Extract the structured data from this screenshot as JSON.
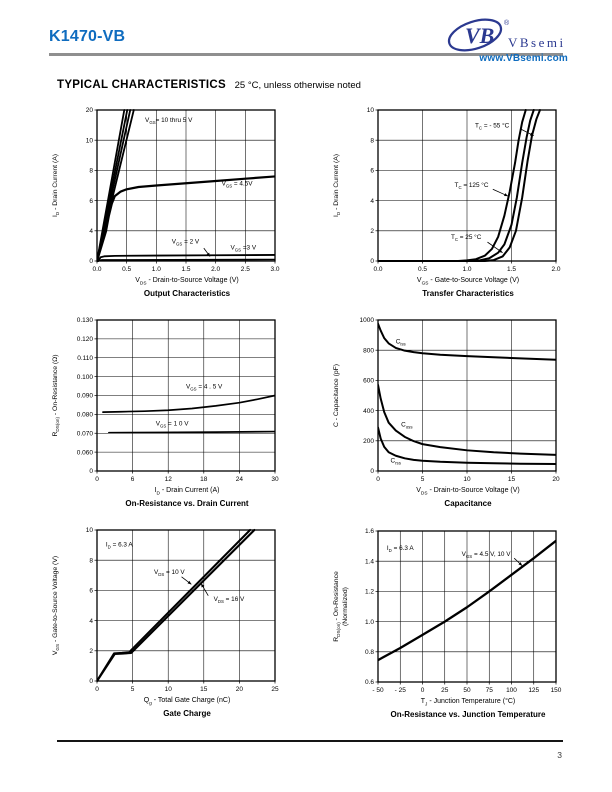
{
  "page": {
    "number": "3"
  },
  "header": {
    "part_number": "K1470-VB",
    "logo_script": "VB",
    "logo_reg": "®",
    "logo_text": "VBsemi",
    "logo_url": "www.VBsemi.com",
    "part_number_color": "#0f6cbf",
    "logo_color": "#2b3990"
  },
  "section": {
    "title": "TYPICAL CHARACTERISTICS",
    "subtitle": "25 °C, unless otherwise noted"
  },
  "chart_data": [
    {
      "type": "line",
      "title": "Output Characteristics",
      "xlabel": "V_{DS} - Drain-to-Source Voltage (V)",
      "ylabel": [
        "I_{D} - Drain Current (A)"
      ],
      "x_range": [
        0,
        3
      ],
      "x_ticks": [
        {
          "label": "0.0",
          "v": 0
        },
        {
          "label": "0.5",
          "v": 0.5
        },
        {
          "label": "1.0",
          "v": 1
        },
        {
          "label": "1.5",
          "v": 1.5
        },
        {
          "label": "2.0",
          "v": 2
        },
        {
          "label": "2.5",
          "v": 2.5
        },
        {
          "label": "3.0",
          "v": 3
        }
      ],
      "y_ticks": [
        {
          "label": "0",
          "f": 0
        },
        {
          "label": "4",
          "f": 0.2
        },
        {
          "label": "6",
          "f": 0.4
        },
        {
          "label": "8",
          "f": 0.6
        },
        {
          "label": "10",
          "f": 0.8
        },
        {
          "label": "20",
          "f": 1
        }
      ],
      "y_map": [
        [
          0,
          0
        ],
        [
          4,
          0.2
        ],
        [
          6,
          0.4
        ],
        [
          8,
          0.6
        ],
        [
          10,
          0.8
        ],
        [
          20,
          1
        ]
      ],
      "series": [
        {
          "name": "VGS 10 thru 5 V (a)",
          "w": 1.8,
          "x": [
            0,
            0.092,
            0.184,
            0.276,
            0.368,
            0.46
          ],
          "y": [
            0,
            4,
            6,
            8,
            10,
            20
          ]
        },
        {
          "name": "VGS 10 thru 5 V (b)",
          "w": 1.8,
          "x": [
            0,
            0.102,
            0.204,
            0.306,
            0.408,
            0.51
          ],
          "y": [
            0,
            4,
            6,
            8,
            10,
            20
          ]
        },
        {
          "name": "VGS 10 thru 5 V (c)",
          "w": 1.8,
          "x": [
            0,
            0.112,
            0.224,
            0.336,
            0.448,
            0.56
          ],
          "y": [
            0,
            4,
            6,
            8,
            10,
            20
          ]
        },
        {
          "name": "VGS 10 thru 5 V (d)",
          "w": 1.8,
          "x": [
            0,
            0.124,
            0.248,
            0.372,
            0.496,
            0.62
          ],
          "y": [
            0,
            4,
            6,
            8,
            10,
            20
          ]
        },
        {
          "name": "VGS = 4.5 V",
          "w": 2.2,
          "x": [
            0,
            0.05,
            0.1,
            0.15,
            0.2,
            0.25,
            0.3,
            0.4,
            0.5,
            0.7,
            1,
            1.5,
            2,
            2.5,
            3
          ],
          "y": [
            0,
            1.3,
            2.6,
            3.9,
            5,
            5.8,
            6.3,
            6.6,
            6.75,
            6.9,
            7,
            7.15,
            7.3,
            7.45,
            7.6
          ]
        },
        {
          "name": "VGS = 3 V",
          "w": 1.8,
          "x": [
            0.02,
            0.06,
            0.12,
            0.3,
            1,
            2,
            3
          ],
          "y": [
            0,
            0.5,
            0.62,
            0.68,
            0.72,
            0.76,
            0.8
          ]
        },
        {
          "name": "VGS = 2 V",
          "w": 1.6,
          "x": [
            0.02,
            0.08,
            3
          ],
          "y": [
            0,
            0.14,
            0.2
          ]
        }
      ],
      "annotations": [
        {
          "text": "V_{GS}= 10 thru 5 V",
          "fx": 0.27,
          "fy": 0.92
        },
        {
          "text": "V_{GS} = 4.5V",
          "fx": 0.7,
          "fy": 0.5
        },
        {
          "text": "V_{GS} = 2 V",
          "fx": 0.42,
          "fy": 0.115,
          "arrow": [
            0.6,
            0.085,
            0.635,
            0.03
          ]
        },
        {
          "text": "V_{GS} =3 V",
          "fx": 0.75,
          "fy": 0.075
        }
      ]
    },
    {
      "type": "line",
      "title": "Transfer Characteristics",
      "xlabel": "V_{GS} - Gate-to-Source Voltage (V)",
      "ylabel": [
        "I_{D} - Drain Current (A)"
      ],
      "x_range": [
        0,
        2
      ],
      "x_ticks": [
        {
          "label": "0.0",
          "v": 0
        },
        {
          "label": "0.5",
          "v": 0.5
        },
        {
          "label": "1.0",
          "v": 1
        },
        {
          "label": "1.5",
          "v": 1.5
        },
        {
          "label": "2.0",
          "v": 2
        }
      ],
      "y_ticks": [
        {
          "label": "0",
          "f": 0
        },
        {
          "label": "2",
          "f": 0.2
        },
        {
          "label": "4",
          "f": 0.4
        },
        {
          "label": "6",
          "f": 0.6
        },
        {
          "label": "8",
          "f": 0.8
        },
        {
          "label": "10",
          "f": 1
        }
      ],
      "y_map": [
        [
          0,
          0
        ],
        [
          10,
          1
        ]
      ],
      "series": [
        {
          "name": "TC = 125 C",
          "w": 2,
          "x": [
            0,
            0.9,
            1,
            1.1,
            1.2,
            1.28,
            1.35,
            1.42,
            1.48,
            1.54,
            1.58,
            1.62,
            1.66
          ],
          "y": [
            0,
            0,
            0.04,
            0.12,
            0.35,
            0.8,
            1.6,
            3,
            4.6,
            6.5,
            8,
            9.2,
            10
          ]
        },
        {
          "name": "TC = 25 C",
          "w": 2,
          "x": [
            0,
            1.05,
            1.15,
            1.25,
            1.35,
            1.42,
            1.5,
            1.56,
            1.62,
            1.67,
            1.71,
            1.75
          ],
          "y": [
            0,
            0,
            0.05,
            0.18,
            0.55,
            1.1,
            2.4,
            4.2,
            6.5,
            8.2,
            9.3,
            10
          ]
        },
        {
          "name": "TC = -55 C",
          "w": 2,
          "x": [
            0,
            1.2,
            1.3,
            1.4,
            1.48,
            1.55,
            1.62,
            1.68,
            1.73,
            1.78,
            1.82
          ],
          "y": [
            0,
            0,
            0.06,
            0.3,
            0.9,
            2,
            4.2,
            6.6,
            8.3,
            9.4,
            10
          ]
        }
      ],
      "annotations": [
        {
          "text": "T_{C} = - 55 °C",
          "fx": 0.545,
          "fy": 0.885,
          "arrow": [
            0.8,
            0.875,
            0.875,
            0.83
          ]
        },
        {
          "text": "T_{C} = 125 °C",
          "fx": 0.43,
          "fy": 0.49,
          "arrow": [
            0.645,
            0.475,
            0.73,
            0.43
          ]
        },
        {
          "text": "T_{C} = 25 °C",
          "fx": 0.41,
          "fy": 0.145,
          "arrow": [
            0.615,
            0.125,
            0.7,
            0.055
          ]
        }
      ]
    },
    {
      "type": "line",
      "title": "On-Resistance vs. Drain Current",
      "xlabel": "I_{D} - Drain Current (A)",
      "ylabel": [
        "R_{DS(on)} - On-Resistance (Ω)"
      ],
      "x_range": [
        0,
        30
      ],
      "x_ticks": [
        {
          "label": "0",
          "v": 0
        },
        {
          "label": "6",
          "v": 6
        },
        {
          "label": "12",
          "v": 12
        },
        {
          "label": "18",
          "v": 18
        },
        {
          "label": "24",
          "v": 24
        },
        {
          "label": "30",
          "v": 30
        }
      ],
      "y_ticks": [
        {
          "label": "0",
          "f": 0
        },
        {
          "label": "0.060",
          "f": 0.125
        },
        {
          "label": "0.070",
          "f": 0.25
        },
        {
          "label": "0.080",
          "f": 0.375
        },
        {
          "label": "0.090",
          "f": 0.5
        },
        {
          "label": "0.100",
          "f": 0.625
        },
        {
          "label": "0.110",
          "f": 0.75
        },
        {
          "label": "0.120",
          "f": 0.875
        },
        {
          "label": "0.130",
          "f": 1
        }
      ],
      "y_map": [
        [
          0,
          0
        ],
        [
          0.06,
          0.125
        ],
        [
          0.13,
          1
        ]
      ],
      "series": [
        {
          "name": "VGS = 4.5 V",
          "w": 1.7,
          "x": [
            1,
            4,
            8,
            12,
            16,
            20,
            24,
            27,
            30
          ],
          "y": [
            0.0812,
            0.0814,
            0.0817,
            0.0822,
            0.0831,
            0.0845,
            0.0862,
            0.088,
            0.09
          ]
        },
        {
          "name": "VGS = 10 V",
          "w": 1.7,
          "x": [
            2,
            10,
            20,
            30
          ],
          "y": [
            0.0703,
            0.0704,
            0.0706,
            0.0709
          ]
        }
      ],
      "annotations": [
        {
          "text": "V_{GS} = 4 . 5  V",
          "fx": 0.5,
          "fy": 0.545
        },
        {
          "text": "V_{GS} = 1 0  V",
          "fx": 0.33,
          "fy": 0.3
        }
      ]
    },
    {
      "type": "line",
      "title": "Capacitance",
      "xlabel": "V_{DS} - Drain-to-Source Voltage (V)",
      "ylabel": [
        "C - Capacitance (pF)"
      ],
      "x_range": [
        0,
        20
      ],
      "x_ticks": [
        {
          "label": "0",
          "v": 0
        },
        {
          "label": "5",
          "v": 5
        },
        {
          "label": "10",
          "v": 10
        },
        {
          "label": "15",
          "v": 15
        },
        {
          "label": "20",
          "v": 20
        }
      ],
      "y_ticks": [
        {
          "label": "0",
          "f": 0
        },
        {
          "label": "200",
          "f": 0.2
        },
        {
          "label": "400",
          "f": 0.4
        },
        {
          "label": "600",
          "f": 0.6
        },
        {
          "label": "800",
          "f": 0.8
        },
        {
          "label": "1000",
          "f": 1
        }
      ],
      "y_map": [
        [
          0,
          0
        ],
        [
          1000,
          1
        ]
      ],
      "series": [
        {
          "name": "Ciss",
          "w": 2,
          "x": [
            0,
            0.3,
            0.7,
            1.2,
            2,
            3,
            4,
            5,
            7,
            10,
            13,
            16,
            20
          ],
          "y": [
            975,
            930,
            880,
            845,
            815,
            797,
            787,
            780,
            770,
            761,
            753,
            746,
            737
          ]
        },
        {
          "name": "Coss",
          "w": 2,
          "x": [
            0,
            0.3,
            0.7,
            1.2,
            2,
            3,
            4,
            5,
            7,
            10,
            13,
            16,
            20
          ],
          "y": [
            570,
            480,
            390,
            320,
            268,
            226,
            198,
            178,
            158,
            137,
            124,
            115,
            107
          ]
        },
        {
          "name": "Crss",
          "w": 2,
          "x": [
            0,
            0.3,
            0.7,
            1.2,
            2,
            3,
            4,
            5,
            7,
            10,
            13,
            16,
            20
          ],
          "y": [
            288,
            215,
            160,
            124,
            101,
            84,
            74,
            68,
            61,
            55,
            51,
            48,
            46
          ]
        }
      ],
      "annotations": [
        {
          "text": "C_{iss}",
          "fx": 0.1,
          "fy": 0.845
        },
        {
          "text": "C_{oss}",
          "fx": 0.13,
          "fy": 0.295
        },
        {
          "text": "C_{rss}",
          "fx": 0.07,
          "fy": 0.055
        }
      ]
    },
    {
      "type": "line",
      "title": "Gate Charge",
      "xlabel": "Q_{g} - Total Gate Charge (nC)",
      "ylabel": [
        "V_{GS} - Gate-to-Source Voltage (V)"
      ],
      "x_range": [
        0,
        25
      ],
      "x_ticks": [
        {
          "label": "0",
          "v": 0
        },
        {
          "label": "5",
          "v": 5
        },
        {
          "label": "10",
          "v": 10
        },
        {
          "label": "15",
          "v": 15
        },
        {
          "label": "20",
          "v": 20
        },
        {
          "label": "25",
          "v": 25
        }
      ],
      "y_ticks": [
        {
          "label": "0",
          "f": 0
        },
        {
          "label": "2",
          "f": 0.2
        },
        {
          "label": "4",
          "f": 0.4
        },
        {
          "label": "6",
          "f": 0.6
        },
        {
          "label": "8",
          "f": 0.8
        },
        {
          "label": "10",
          "f": 1
        }
      ],
      "y_map": [
        [
          0,
          0
        ],
        [
          10,
          1
        ]
      ],
      "series": [
        {
          "name": "VDS = 10 V",
          "w": 2.1,
          "x": [
            0,
            2.4,
            3.5,
            4.5,
            21.5
          ],
          "y": [
            0,
            1.83,
            1.86,
            1.9,
            10
          ]
        },
        {
          "name": "VDS = 16 V",
          "w": 2.1,
          "x": [
            0,
            2.5,
            3.6,
            4.8,
            22.1
          ],
          "y": [
            0,
            1.79,
            1.82,
            1.86,
            10
          ]
        }
      ],
      "annotations": [
        {
          "text": "I_{D} =  6.3 A",
          "fx": 0.05,
          "fy": 0.89
        },
        {
          "text": "V_{DS} = 10 V",
          "fx": 0.32,
          "fy": 0.71,
          "arrow": [
            0.475,
            0.69,
            0.53,
            0.64
          ]
        },
        {
          "text": "V_{DS} = 16 V",
          "fx": 0.655,
          "fy": 0.53,
          "arrow": [
            0.625,
            0.565,
            0.585,
            0.645
          ]
        }
      ]
    },
    {
      "type": "line",
      "title": "On-Resistance vs. Junction Temperature",
      "xlabel": "T_{J} - Junction Temperature (°C)",
      "ylabel": [
        "R_{DS(on)} - On-Resistance",
        "(Normalized)"
      ],
      "x_range": [
        -50,
        150
      ],
      "x_ticks": [
        {
          "label": "- 50",
          "v": -50
        },
        {
          "label": "- 25",
          "v": -25
        },
        {
          "label": "0",
          "v": 0
        },
        {
          "label": "25",
          "v": 25
        },
        {
          "label": "50",
          "v": 50
        },
        {
          "label": "75",
          "v": 75
        },
        {
          "label": "100",
          "v": 100
        },
        {
          "label": "125",
          "v": 125
        },
        {
          "label": "150",
          "v": 150
        }
      ],
      "y_ticks": [
        {
          "label": "0.6",
          "f": 0
        },
        {
          "label": "0.8",
          "f": 0.2
        },
        {
          "label": "1.0",
          "f": 0.4
        },
        {
          "label": "1.2",
          "f": 0.6
        },
        {
          "label": "1.4",
          "f": 0.8
        },
        {
          "label": "1.6",
          "f": 1
        }
      ],
      "y_map": [
        [
          0.6,
          0
        ],
        [
          1.6,
          1
        ]
      ],
      "series": [
        {
          "name": "VGS = 4.5 V, 10 V",
          "w": 2.3,
          "x": [
            -50,
            -25,
            0,
            25,
            50,
            75,
            100,
            125,
            150
          ],
          "y": [
            0.745,
            0.825,
            0.912,
            1.0,
            1.095,
            1.2,
            1.31,
            1.42,
            1.535
          ]
        }
      ],
      "annotations": [
        {
          "text": "I_{D} =  6.3 A",
          "fx": 0.05,
          "fy": 0.875
        },
        {
          "text": "V_{GS} = 4.5 V, 10  V",
          "fx": 0.47,
          "fy": 0.835,
          "arrow": [
            0.765,
            0.82,
            0.81,
            0.77
          ]
        }
      ]
    }
  ]
}
